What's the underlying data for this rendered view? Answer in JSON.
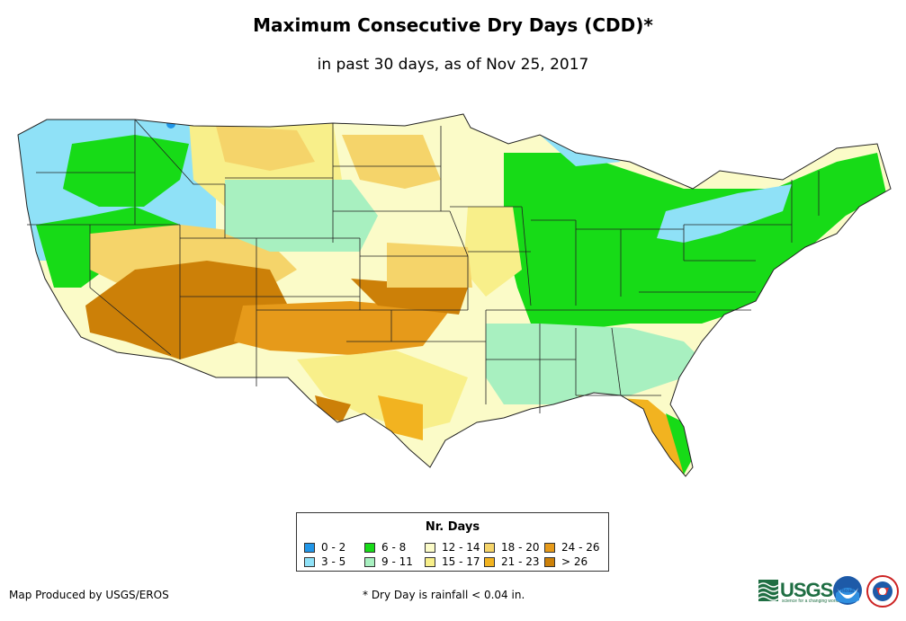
{
  "header": {
    "title": "Maximum Consecutive Dry Days (CDD)*",
    "subtitle": "in past 30 days, as of Nov 25, 2017"
  },
  "legend": {
    "title": "Nr. Days",
    "items": [
      {
        "label": "0 - 2",
        "color": "#2196e8"
      },
      {
        "label": "3 - 5",
        "color": "#8fe1f7"
      },
      {
        "label": "6 - 8",
        "color": "#17db17"
      },
      {
        "label": "9 - 11",
        "color": "#a8f0c0"
      },
      {
        "label": "12 - 14",
        "color": "#fbfbc8"
      },
      {
        "label": "15 - 17",
        "color": "#f8ef8a"
      },
      {
        "label": "18 - 20",
        "color": "#f5d46a"
      },
      {
        "label": "21 - 23",
        "color": "#f2b320"
      },
      {
        "label": "24 - 26",
        "color": "#e69a1a"
      },
      {
        "label": "> 26",
        "color": "#cc8008"
      }
    ]
  },
  "footer": {
    "credit": "Map Produced by USGS/EROS",
    "footnote": "* Dry Day is rainfall < 0.04 in."
  },
  "logos": {
    "usgs": "USGS",
    "usgs_tagline": "science for a changing world",
    "noaa": "noaa"
  }
}
